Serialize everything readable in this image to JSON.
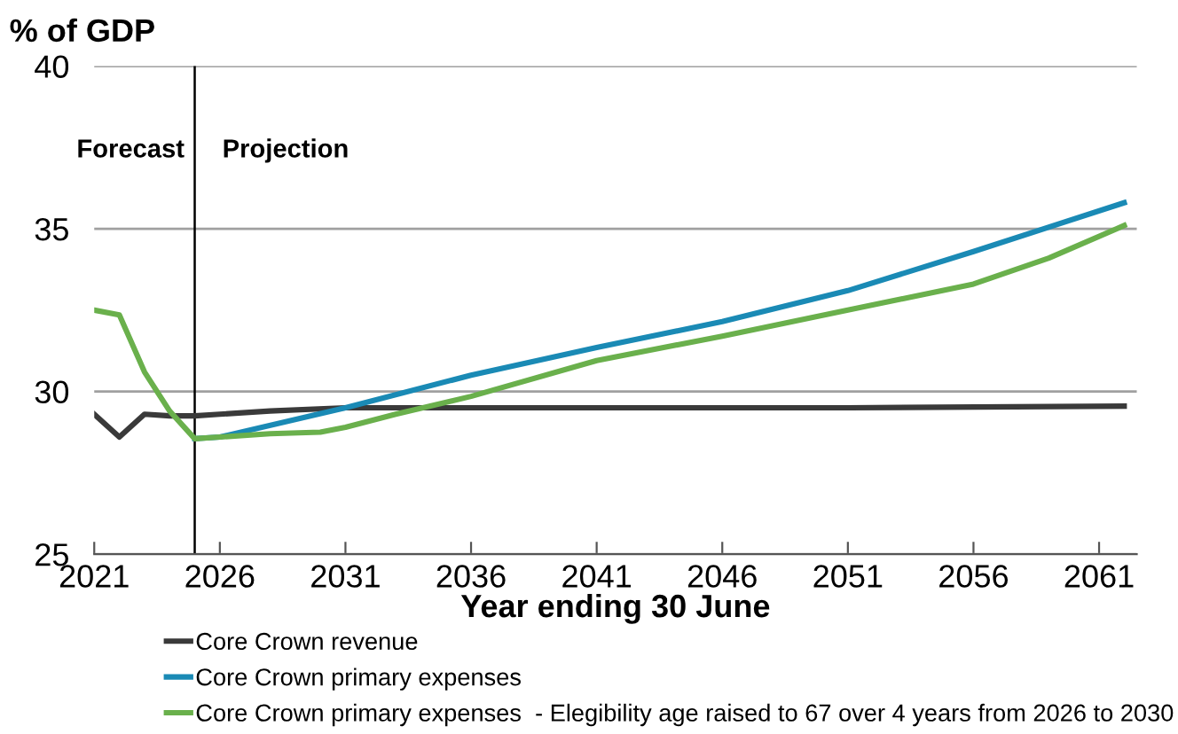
{
  "chart_data": {
    "type": "line",
    "ylabel": "% of GDP",
    "xlabel": "Year ending 30 June",
    "xlim": [
      2021,
      2062.5
    ],
    "xticks": [
      2021,
      2026,
      2031,
      2036,
      2041,
      2046,
      2051,
      2056,
      2061
    ],
    "ylim": [
      25,
      40
    ],
    "yticks": [
      25,
      30,
      35,
      40
    ],
    "grid": "y",
    "legend": "bottom",
    "marker": "none",
    "line_style": "solid",
    "ref_lines": [
      {
        "axis": "x",
        "value": 2025,
        "color": "#000000"
      }
    ],
    "annotations": [
      "Forecast",
      "Projection"
    ],
    "series": [
      {
        "name": "Core Crown revenue",
        "color": "#3a3a3a",
        "x": [
          2021,
          2022,
          2023,
          2024,
          2025,
          2026,
          2028,
          2031,
          2041,
          2051,
          2062
        ],
        "values": [
          29.3,
          28.6,
          29.3,
          29.25,
          29.25,
          29.3,
          29.4,
          29.5,
          29.5,
          29.5,
          29.55
        ]
      },
      {
        "name": "Core Crown primary expenses",
        "color": "#1a8ab5",
        "x": [
          2025,
          2026,
          2031,
          2036,
          2041,
          2046,
          2051,
          2056,
          2062
        ],
        "values": [
          28.55,
          28.6,
          29.5,
          30.5,
          31.35,
          32.15,
          33.1,
          34.3,
          35.8
        ]
      },
      {
        "name": "Core Crown primary expenses  - Elegibility age raised to 67 over 4 years from 2026 to 2030",
        "color": "#6ab04c",
        "x": [
          2021,
          2022,
          2023,
          2024,
          2025,
          2026,
          2028,
          2030,
          2031,
          2033,
          2036,
          2041,
          2046,
          2051,
          2056,
          2059,
          2062
        ],
        "values": [
          32.5,
          32.35,
          30.6,
          29.4,
          28.55,
          28.6,
          28.7,
          28.75,
          28.9,
          29.3,
          29.85,
          30.95,
          31.7,
          32.5,
          33.3,
          34.1,
          35.1
        ]
      }
    ]
  }
}
